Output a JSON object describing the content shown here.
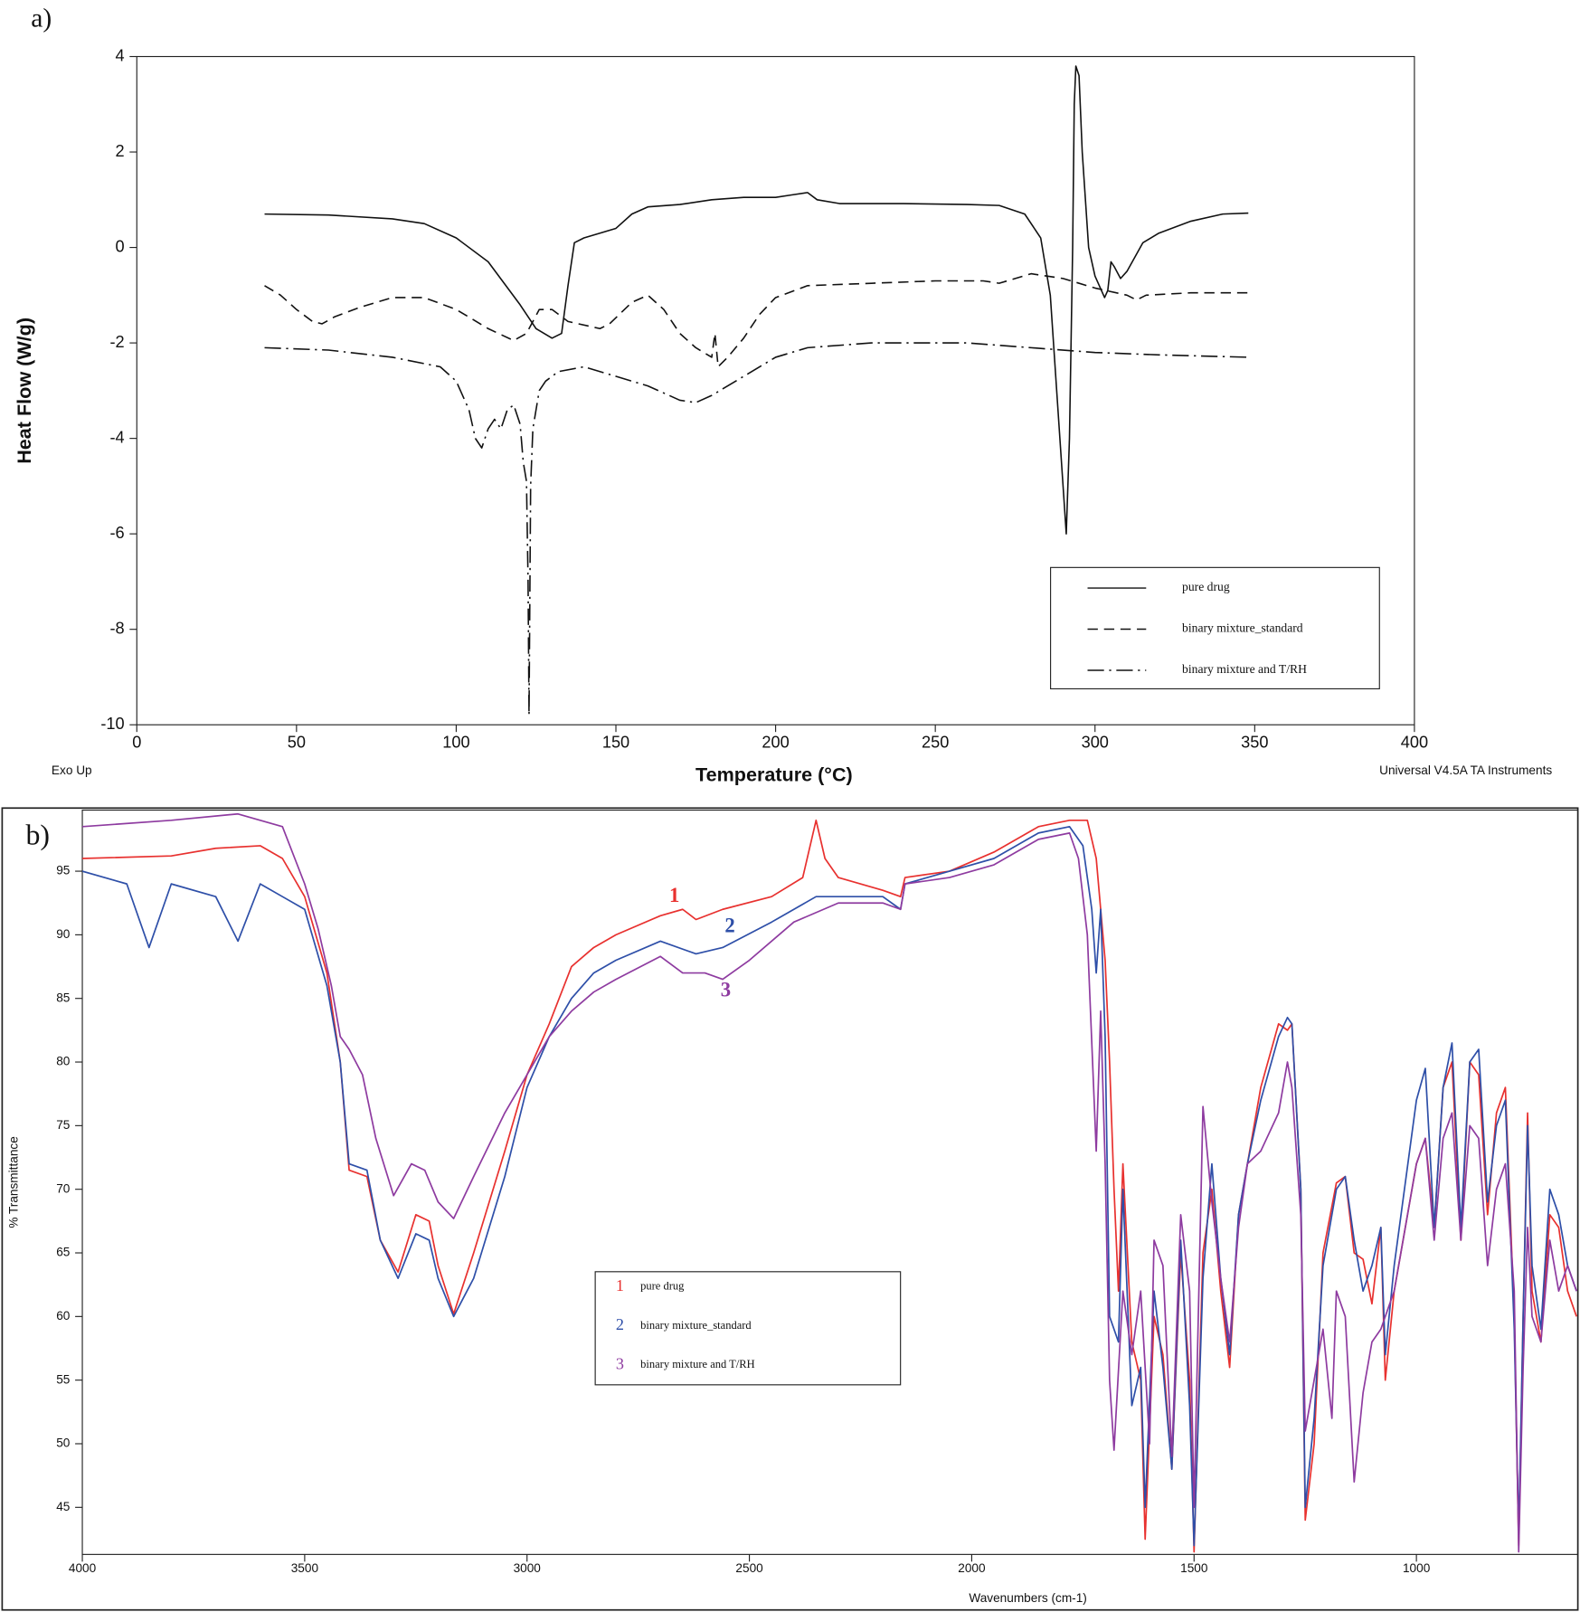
{
  "chart_data": [
    {
      "type": "line",
      "panel_label": "a)",
      "y_label": "Heat Flow (W/g)",
      "x_label": "Temperature (°C)",
      "left_note": "Exo Up",
      "right_note": "Universal V4.5A TA Instruments",
      "xlim": [
        0,
        400
      ],
      "ylim": [
        -10,
        4
      ],
      "xticks": [
        0,
        50,
        100,
        150,
        200,
        250,
        300,
        350,
        400
      ],
      "yticks": [
        -10,
        -8,
        -6,
        -4,
        -2,
        0,
        2,
        4
      ],
      "legend": "bottom-right",
      "series": [
        {
          "name": "pure drug",
          "color": "#111111",
          "dash": "solid",
          "x": [
            40,
            60,
            80,
            90,
            100,
            110,
            120,
            125,
            130,
            133,
            135,
            137,
            140,
            145,
            150,
            155,
            160,
            170,
            180,
            190,
            200,
            205,
            210,
            213,
            220,
            240,
            260,
            270,
            278,
            283,
            286,
            289,
            291,
            292,
            293,
            293.5,
            294,
            295,
            296,
            298,
            300,
            303,
            304,
            305,
            306,
            308,
            310,
            315,
            320,
            330,
            340,
            348
          ],
          "values": [
            0.7,
            0.68,
            0.6,
            0.5,
            0.2,
            -0.3,
            -1.2,
            -1.7,
            -1.9,
            -1.8,
            -0.8,
            0.1,
            0.2,
            0.3,
            0.4,
            0.7,
            0.85,
            0.9,
            1.0,
            1.05,
            1.05,
            1.1,
            1.15,
            1.0,
            0.92,
            0.92,
            0.9,
            0.88,
            0.7,
            0.2,
            -1.0,
            -4.0,
            -6.0,
            -4,
            0,
            3.0,
            3.8,
            3.6,
            2.0,
            0,
            -0.6,
            -1.05,
            -0.9,
            -0.3,
            -0.4,
            -0.65,
            -0.5,
            0.1,
            0.3,
            0.55,
            0.7,
            0.72
          ]
        },
        {
          "name": "binary mixture_standard",
          "color": "#111111",
          "dash": "dashed",
          "x": [
            40,
            45,
            50,
            55,
            58,
            62,
            70,
            80,
            90,
            100,
            110,
            118,
            122,
            126,
            130,
            135,
            145,
            148,
            155,
            160,
            165,
            170,
            175,
            180,
            181,
            182,
            185,
            190,
            195,
            200,
            210,
            230,
            250,
            265,
            270,
            280,
            290,
            300,
            310,
            313,
            316,
            330,
            348
          ],
          "values": [
            -0.8,
            -1.0,
            -1.3,
            -1.55,
            -1.6,
            -1.45,
            -1.25,
            -1.05,
            -1.05,
            -1.3,
            -1.7,
            -1.95,
            -1.8,
            -1.3,
            -1.3,
            -1.55,
            -1.7,
            -1.6,
            -1.15,
            -1.0,
            -1.3,
            -1.8,
            -2.1,
            -2.3,
            -1.8,
            -2.5,
            -2.3,
            -1.9,
            -1.4,
            -1.05,
            -0.8,
            -0.75,
            -0.7,
            -0.7,
            -0.75,
            -0.55,
            -0.65,
            -0.85,
            -1.0,
            -1.1,
            -1.0,
            -0.95,
            -0.95
          ]
        },
        {
          "name": "binary mixture and T/RH",
          "color": "#111111",
          "dash": "dashdot",
          "x": [
            40,
            60,
            80,
            95,
            100,
            104,
            106,
            108,
            110,
            112,
            114,
            116,
            118,
            120,
            121,
            122,
            122.5,
            122.8,
            123.3,
            124,
            126,
            128,
            132,
            140,
            150,
            160,
            170,
            175,
            180,
            190,
            200,
            210,
            230,
            250,
            260,
            280,
            300,
            320,
            348
          ],
          "values": [
            -2.1,
            -2.15,
            -2.3,
            -2.5,
            -2.8,
            -3.4,
            -4.0,
            -4.2,
            -3.8,
            -3.6,
            -3.8,
            -3.4,
            -3.3,
            -3.7,
            -4.5,
            -4.9,
            -7,
            -9.8,
            -5,
            -3.8,
            -3.0,
            -2.8,
            -2.6,
            -2.5,
            -2.7,
            -2.9,
            -3.2,
            -3.25,
            -3.1,
            -2.7,
            -2.3,
            -2.1,
            -2.0,
            -2.0,
            -2.0,
            -2.1,
            -2.2,
            -2.25,
            -2.3
          ]
        }
      ]
    },
    {
      "type": "line",
      "panel_label": "b)",
      "y_label": "% Transmittance",
      "x_label": "Wavenumbers (cm-1)",
      "xlim": [
        4000,
        637
      ],
      "ylim": [
        41.3,
        99.8
      ],
      "xticks": [
        4000,
        3500,
        3000,
        2500,
        2000,
        1500,
        1000
      ],
      "yticks": [
        45,
        50,
        55,
        60,
        65,
        70,
        75,
        80,
        85,
        90,
        95
      ],
      "legend": "center",
      "series": [
        {
          "name": "pure drug",
          "label": "1",
          "color": "#e8312f",
          "dash": "solid",
          "x": [
            4000,
            3800,
            3700,
            3600,
            3550,
            3500,
            3450,
            3420,
            3400,
            3360,
            3330,
            3290,
            3250,
            3220,
            3200,
            3165,
            3120,
            3050,
            3000,
            2950,
            2900,
            2850,
            2800,
            2700,
            2650,
            2620,
            2560,
            2450,
            2380,
            2350,
            2330,
            2300,
            2200,
            2160,
            2150,
            2050,
            1950,
            1850,
            1780,
            1740,
            1720,
            1700,
            1690,
            1680,
            1670,
            1660,
            1640,
            1620,
            1610,
            1590,
            1570,
            1550,
            1530,
            1510,
            1500,
            1480,
            1460,
            1440,
            1420,
            1400,
            1380,
            1350,
            1310,
            1290,
            1280,
            1260,
            1250,
            1230,
            1210,
            1180,
            1160,
            1140,
            1120,
            1100,
            1080,
            1070,
            1050,
            1000,
            980,
            960,
            940,
            920,
            900,
            880,
            860,
            840,
            820,
            800,
            780,
            770,
            760,
            750,
            740,
            720,
            700,
            680,
            660,
            640
          ],
          "values": [
            96,
            96.2,
            96.8,
            97,
            96,
            93,
            87,
            80,
            71.5,
            71,
            66,
            63.5,
            68,
            67.5,
            64,
            60.2,
            65,
            73,
            79,
            83,
            87.5,
            89,
            90,
            91.5,
            92,
            91.2,
            92,
            93,
            94.5,
            99,
            96,
            94.5,
            93.5,
            93,
            94.5,
            95,
            96.5,
            98.5,
            99,
            99,
            96,
            88,
            80,
            70,
            62,
            72,
            58,
            55,
            42.5,
            60,
            57,
            48,
            65,
            55,
            41.5,
            65,
            70,
            62,
            56,
            68,
            72,
            78,
            83,
            82.5,
            83,
            70,
            44,
            50,
            65,
            70.5,
            71,
            65,
            64.5,
            61,
            67,
            55,
            62,
            72,
            74,
            67,
            78,
            80,
            66,
            80,
            79,
            68,
            76,
            78,
            60,
            42,
            60,
            76,
            62,
            58,
            68,
            67,
            62,
            60
          ]
        },
        {
          "name": "binary mixture_standard",
          "label": "2",
          "color": "#2e4fa8",
          "dash": "solid",
          "x": [
            4000,
            3900,
            3850,
            3800,
            3700,
            3650,
            3600,
            3550,
            3500,
            3450,
            3420,
            3400,
            3360,
            3330,
            3290,
            3250,
            3220,
            3200,
            3165,
            3120,
            3050,
            3000,
            2950,
            2900,
            2850,
            2800,
            2700,
            2620,
            2560,
            2450,
            2350,
            2200,
            2160,
            2150,
            2050,
            1950,
            1850,
            1780,
            1750,
            1730,
            1720,
            1710,
            1700,
            1690,
            1670,
            1660,
            1640,
            1620,
            1610,
            1590,
            1570,
            1550,
            1530,
            1510,
            1500,
            1480,
            1460,
            1440,
            1420,
            1400,
            1380,
            1350,
            1310,
            1290,
            1280,
            1260,
            1250,
            1230,
            1210,
            1180,
            1160,
            1140,
            1120,
            1100,
            1080,
            1070,
            1050,
            1000,
            980,
            960,
            940,
            920,
            900,
            880,
            860,
            840,
            820,
            800,
            780,
            770,
            760,
            750,
            740,
            720,
            700,
            680,
            660,
            640
          ],
          "values": [
            95,
            94,
            89,
            94,
            93,
            89.5,
            94,
            93,
            92,
            86,
            80,
            72,
            71.5,
            66,
            63,
            66.5,
            66,
            63,
            60,
            63,
            71,
            78,
            82,
            85,
            87,
            88,
            89.5,
            88.5,
            89,
            91,
            93,
            93,
            92,
            94,
            95,
            96,
            98,
            98.5,
            97,
            92,
            87,
            92,
            82,
            60,
            58,
            70,
            53,
            56,
            45,
            62,
            56,
            48,
            66,
            53,
            42,
            63,
            72,
            63,
            57,
            68,
            72,
            77,
            82,
            83.5,
            83,
            70,
            45,
            52,
            64,
            70,
            71,
            66,
            62,
            64,
            67,
            57,
            64,
            77,
            79.5,
            67,
            78,
            81.5,
            67,
            80,
            81,
            69,
            75,
            77,
            59,
            43,
            60,
            75,
            64,
            59,
            70,
            68,
            64,
            62
          ]
        },
        {
          "name": "binary mixture and T/RH",
          "label": "3",
          "color": "#8e3ba0",
          "dash": "solid",
          "x": [
            4000,
            3800,
            3650,
            3550,
            3500,
            3470,
            3440,
            3420,
            3400,
            3370,
            3340,
            3300,
            3260,
            3230,
            3200,
            3165,
            3120,
            3050,
            3000,
            2950,
            2900,
            2850,
            2800,
            2700,
            2650,
            2600,
            2560,
            2500,
            2400,
            2300,
            2200,
            2160,
            2150,
            2050,
            1950,
            1850,
            1780,
            1760,
            1740,
            1720,
            1710,
            1700,
            1690,
            1680,
            1660,
            1640,
            1620,
            1600,
            1590,
            1570,
            1550,
            1530,
            1510,
            1500,
            1480,
            1460,
            1440,
            1420,
            1400,
            1380,
            1350,
            1310,
            1290,
            1280,
            1260,
            1250,
            1230,
            1210,
            1190,
            1180,
            1160,
            1140,
            1120,
            1100,
            1080,
            1050,
            1000,
            980,
            960,
            940,
            920,
            900,
            880,
            860,
            840,
            820,
            800,
            780,
            770,
            760,
            750,
            740,
            720,
            700,
            680,
            660,
            640
          ],
          "values": [
            98.5,
            99,
            99.5,
            98.5,
            94,
            90.5,
            86,
            82,
            81,
            79,
            74,
            69.5,
            72,
            71.5,
            69,
            67.7,
            71,
            76,
            79,
            82,
            84,
            85.5,
            86.5,
            88.3,
            87,
            87,
            86.5,
            88,
            91,
            92.5,
            92.5,
            92,
            94,
            94.5,
            95.5,
            97.5,
            98,
            96,
            90,
            73,
            84,
            72,
            55,
            49.5,
            62,
            57,
            62,
            50,
            66,
            64,
            49,
            68,
            62,
            45,
            76.5,
            69,
            63,
            58,
            67,
            72,
            73,
            76,
            80,
            78,
            68,
            51,
            55,
            59,
            52,
            62,
            60,
            47,
            54,
            58,
            59,
            62,
            72,
            74,
            66,
            74,
            76,
            66,
            75,
            74,
            64,
            70,
            72,
            62,
            41.5,
            56,
            67,
            60,
            58,
            66,
            62,
            64,
            62
          ]
        }
      ]
    }
  ]
}
